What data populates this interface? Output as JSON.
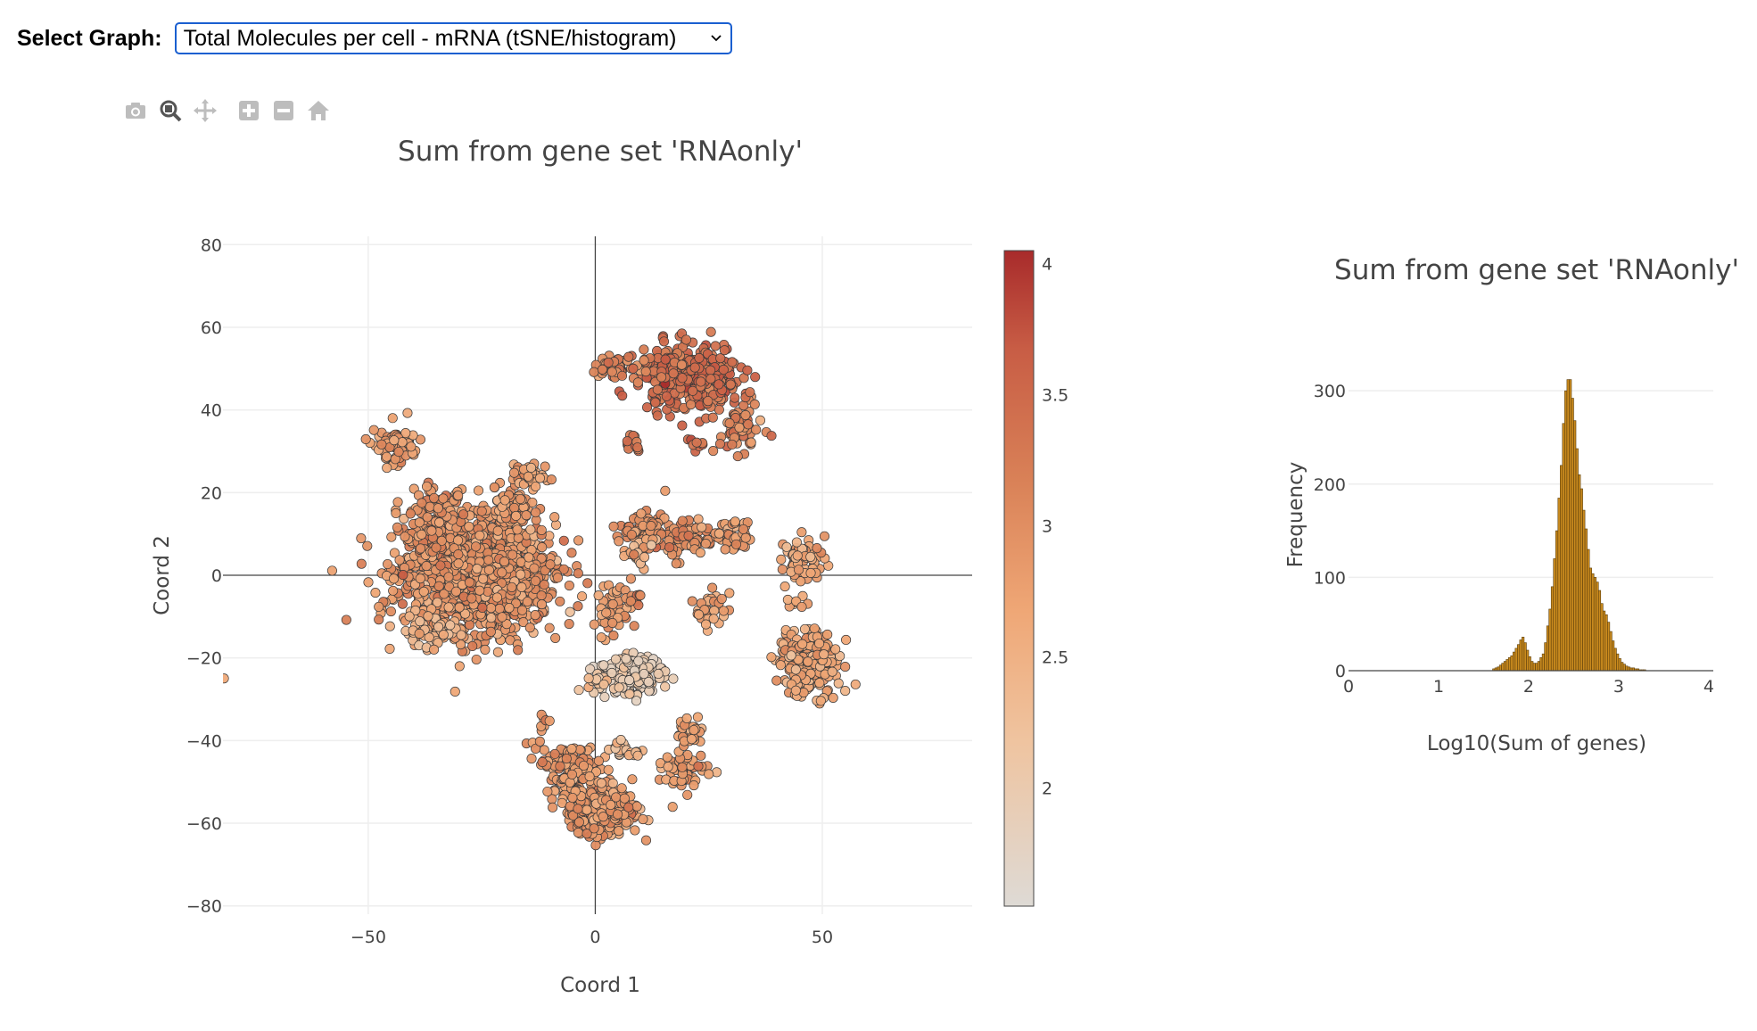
{
  "select": {
    "label": "Select Graph:",
    "selected": "Total Molecules per cell - mRNA (tSNE/histogram)"
  },
  "modebar": {
    "icons": [
      "camera-icon",
      "zoom-icon",
      "pan-icon",
      "zoom-in-icon",
      "zoom-out-icon",
      "home-icon"
    ]
  },
  "chart_data": [
    {
      "type": "scatter",
      "title": "Sum from gene set 'RNAonly'",
      "xlabel": "Coord 1",
      "ylabel": "Coord 2",
      "xlim": [
        -82,
        83
      ],
      "ylim": [
        -82,
        82
      ],
      "xticks": [
        -50,
        0,
        50
      ],
      "xtick_labels": [
        "−50",
        "0",
        "50"
      ],
      "yticks": [
        -80,
        -60,
        -40,
        -20,
        0,
        20,
        40,
        60,
        80
      ],
      "ytick_labels": [
        "−80",
        "−60",
        "−40",
        "−20",
        "0",
        "20",
        "40",
        "60",
        "80"
      ],
      "grid": true,
      "colorbar": {
        "range": [
          1.55,
          4.05
        ],
        "ticks": [
          2,
          2.5,
          3,
          3.5,
          4
        ],
        "tick_labels": [
          "2",
          "2.5",
          "3",
          "3.5",
          "4"
        ],
        "colors": [
          "#dedad5",
          "#efb487",
          "#d98157",
          "#c85d45",
          "#a82b2b"
        ]
      },
      "clusters": [
        {
          "x": -26,
          "y": 0,
          "sx": 8.5,
          "sy": 7,
          "n": 1200,
          "mean": 2.85,
          "sd": 0.22
        },
        {
          "x": -35,
          "y": 10,
          "sx": 3.5,
          "sy": 5,
          "n": 220,
          "mean": 2.95,
          "sd": 0.2
        },
        {
          "x": -44,
          "y": 31,
          "sx": 2.2,
          "sy": 2.5,
          "n": 70,
          "mean": 2.85,
          "sd": 0.25
        },
        {
          "x": -19,
          "y": 16,
          "sx": 3,
          "sy": 3,
          "n": 80,
          "mean": 2.8,
          "sd": 0.2
        },
        {
          "x": -14,
          "y": 24,
          "sx": 2,
          "sy": 1.5,
          "n": 40,
          "mean": 2.8,
          "sd": 0.2
        },
        {
          "x": -36,
          "y": -13,
          "sx": 3,
          "sy": 2.5,
          "n": 60,
          "mean": 2.5,
          "sd": 0.2
        },
        {
          "x": 21,
          "y": 48,
          "sx": 5.5,
          "sy": 4,
          "n": 340,
          "mean": 3.45,
          "sd": 0.18
        },
        {
          "x": 5,
          "y": 50,
          "sx": 3,
          "sy": 1.2,
          "n": 50,
          "mean": 3.1,
          "sd": 0.2
        },
        {
          "x": 32,
          "y": 36,
          "sx": 2.5,
          "sy": 3,
          "n": 60,
          "mean": 3.1,
          "sd": 0.25
        },
        {
          "x": 8,
          "y": 32,
          "sx": 1,
          "sy": 1.5,
          "n": 15,
          "mean": 3.3,
          "sd": 0.2
        },
        {
          "x": 22,
          "y": 32,
          "sx": 1,
          "sy": 1,
          "n": 8,
          "mean": 3.4,
          "sd": 0.2
        },
        {
          "x": 11,
          "y": 11,
          "sx": 2.3,
          "sy": 2.2,
          "n": 70,
          "mean": 3.0,
          "sd": 0.2
        },
        {
          "x": 19,
          "y": 9,
          "sx": 2.8,
          "sy": 2.2,
          "n": 80,
          "mean": 3.05,
          "sd": 0.2
        },
        {
          "x": 29,
          "y": 9,
          "sx": 3,
          "sy": 2,
          "n": 50,
          "mean": 2.85,
          "sd": 0.2
        },
        {
          "x": 10,
          "y": 6,
          "sx": 2,
          "sy": 2,
          "n": 25,
          "mean": 2.6,
          "sd": 0.25
        },
        {
          "x": 46,
          "y": 4,
          "sx": 2.2,
          "sy": 2.5,
          "n": 70,
          "mean": 2.7,
          "sd": 0.2
        },
        {
          "x": 4,
          "y": -8,
          "sx": 2,
          "sy": 3,
          "n": 50,
          "mean": 2.85,
          "sd": 0.2
        },
        {
          "x": 9,
          "y": -5,
          "sx": 0.8,
          "sy": 1,
          "n": 8,
          "mean": 3.2,
          "sd": 0.2
        },
        {
          "x": 26,
          "y": -8,
          "sx": 2,
          "sy": 2,
          "n": 30,
          "mean": 2.7,
          "sd": 0.2
        },
        {
          "x": 47,
          "y": -21,
          "sx": 3.4,
          "sy": 4,
          "n": 220,
          "mean": 2.65,
          "sd": 0.2
        },
        {
          "x": 44,
          "y": -7,
          "sx": 1.5,
          "sy": 1.5,
          "n": 10,
          "mean": 2.7,
          "sd": 0.2
        },
        {
          "x": 8,
          "y": -24,
          "sx": 3.5,
          "sy": 2.5,
          "n": 170,
          "mean": 1.95,
          "sd": 0.15
        },
        {
          "x": 1,
          "y": -25,
          "sx": 1.5,
          "sy": 1,
          "n": 15,
          "mean": 2.2,
          "sd": 0.2
        },
        {
          "x": -5,
          "y": -47,
          "sx": 3,
          "sy": 3,
          "n": 140,
          "mean": 2.9,
          "sd": 0.2
        },
        {
          "x": 1,
          "y": -57,
          "sx": 4.5,
          "sy": 2.8,
          "n": 240,
          "mean": 2.85,
          "sd": 0.2
        },
        {
          "x": 6,
          "y": -42,
          "sx": 2,
          "sy": 1,
          "n": 25,
          "mean": 2.3,
          "sd": 0.2
        },
        {
          "x": 20,
          "y": -47,
          "sx": 3,
          "sy": 2,
          "n": 55,
          "mean": 2.85,
          "sd": 0.2
        },
        {
          "x": 21,
          "y": -38,
          "sx": 1.5,
          "sy": 2,
          "n": 30,
          "mean": 2.75,
          "sd": 0.2
        },
        {
          "x": -12,
          "y": -38,
          "sx": 1.5,
          "sy": 2,
          "n": 10,
          "mean": 3.0,
          "sd": 0.2
        },
        {
          "x": -82,
          "y": -25,
          "sx": 0.1,
          "sy": 0.1,
          "n": 1,
          "mean": 2.6,
          "sd": 0.05
        },
        {
          "x": -6,
          "y": 8,
          "sx": 0.3,
          "sy": 0.3,
          "n": 1,
          "mean": 3.5,
          "sd": 0.05
        }
      ]
    },
    {
      "type": "histogram",
      "title": "Sum from gene set 'RNAonly'",
      "xlabel": "Log10(Sum of genes)",
      "ylabel": "Frequency",
      "xlim": [
        0,
        4.05
      ],
      "ylim": [
        0,
        325
      ],
      "xticks": [
        0,
        1,
        2,
        3,
        4
      ],
      "yticks": [
        0,
        100,
        200,
        300
      ],
      "bar_color": "#c98a1e",
      "bin_width": 0.025,
      "bin_start": 1.6,
      "counts": [
        2,
        3,
        4,
        6,
        8,
        10,
        12,
        14,
        16,
        20,
        24,
        28,
        33,
        36,
        30,
        22,
        15,
        10,
        8,
        8,
        10,
        14,
        18,
        30,
        48,
        66,
        90,
        120,
        150,
        185,
        220,
        265,
        300,
        312,
        312,
        292,
        268,
        238,
        210,
        195,
        172,
        152,
        130,
        110,
        104,
        100,
        95,
        86,
        72,
        64,
        60,
        52,
        42,
        32,
        24,
        18,
        13,
        9,
        7,
        5,
        4,
        3,
        3,
        2,
        2,
        1,
        1,
        1
      ]
    }
  ]
}
